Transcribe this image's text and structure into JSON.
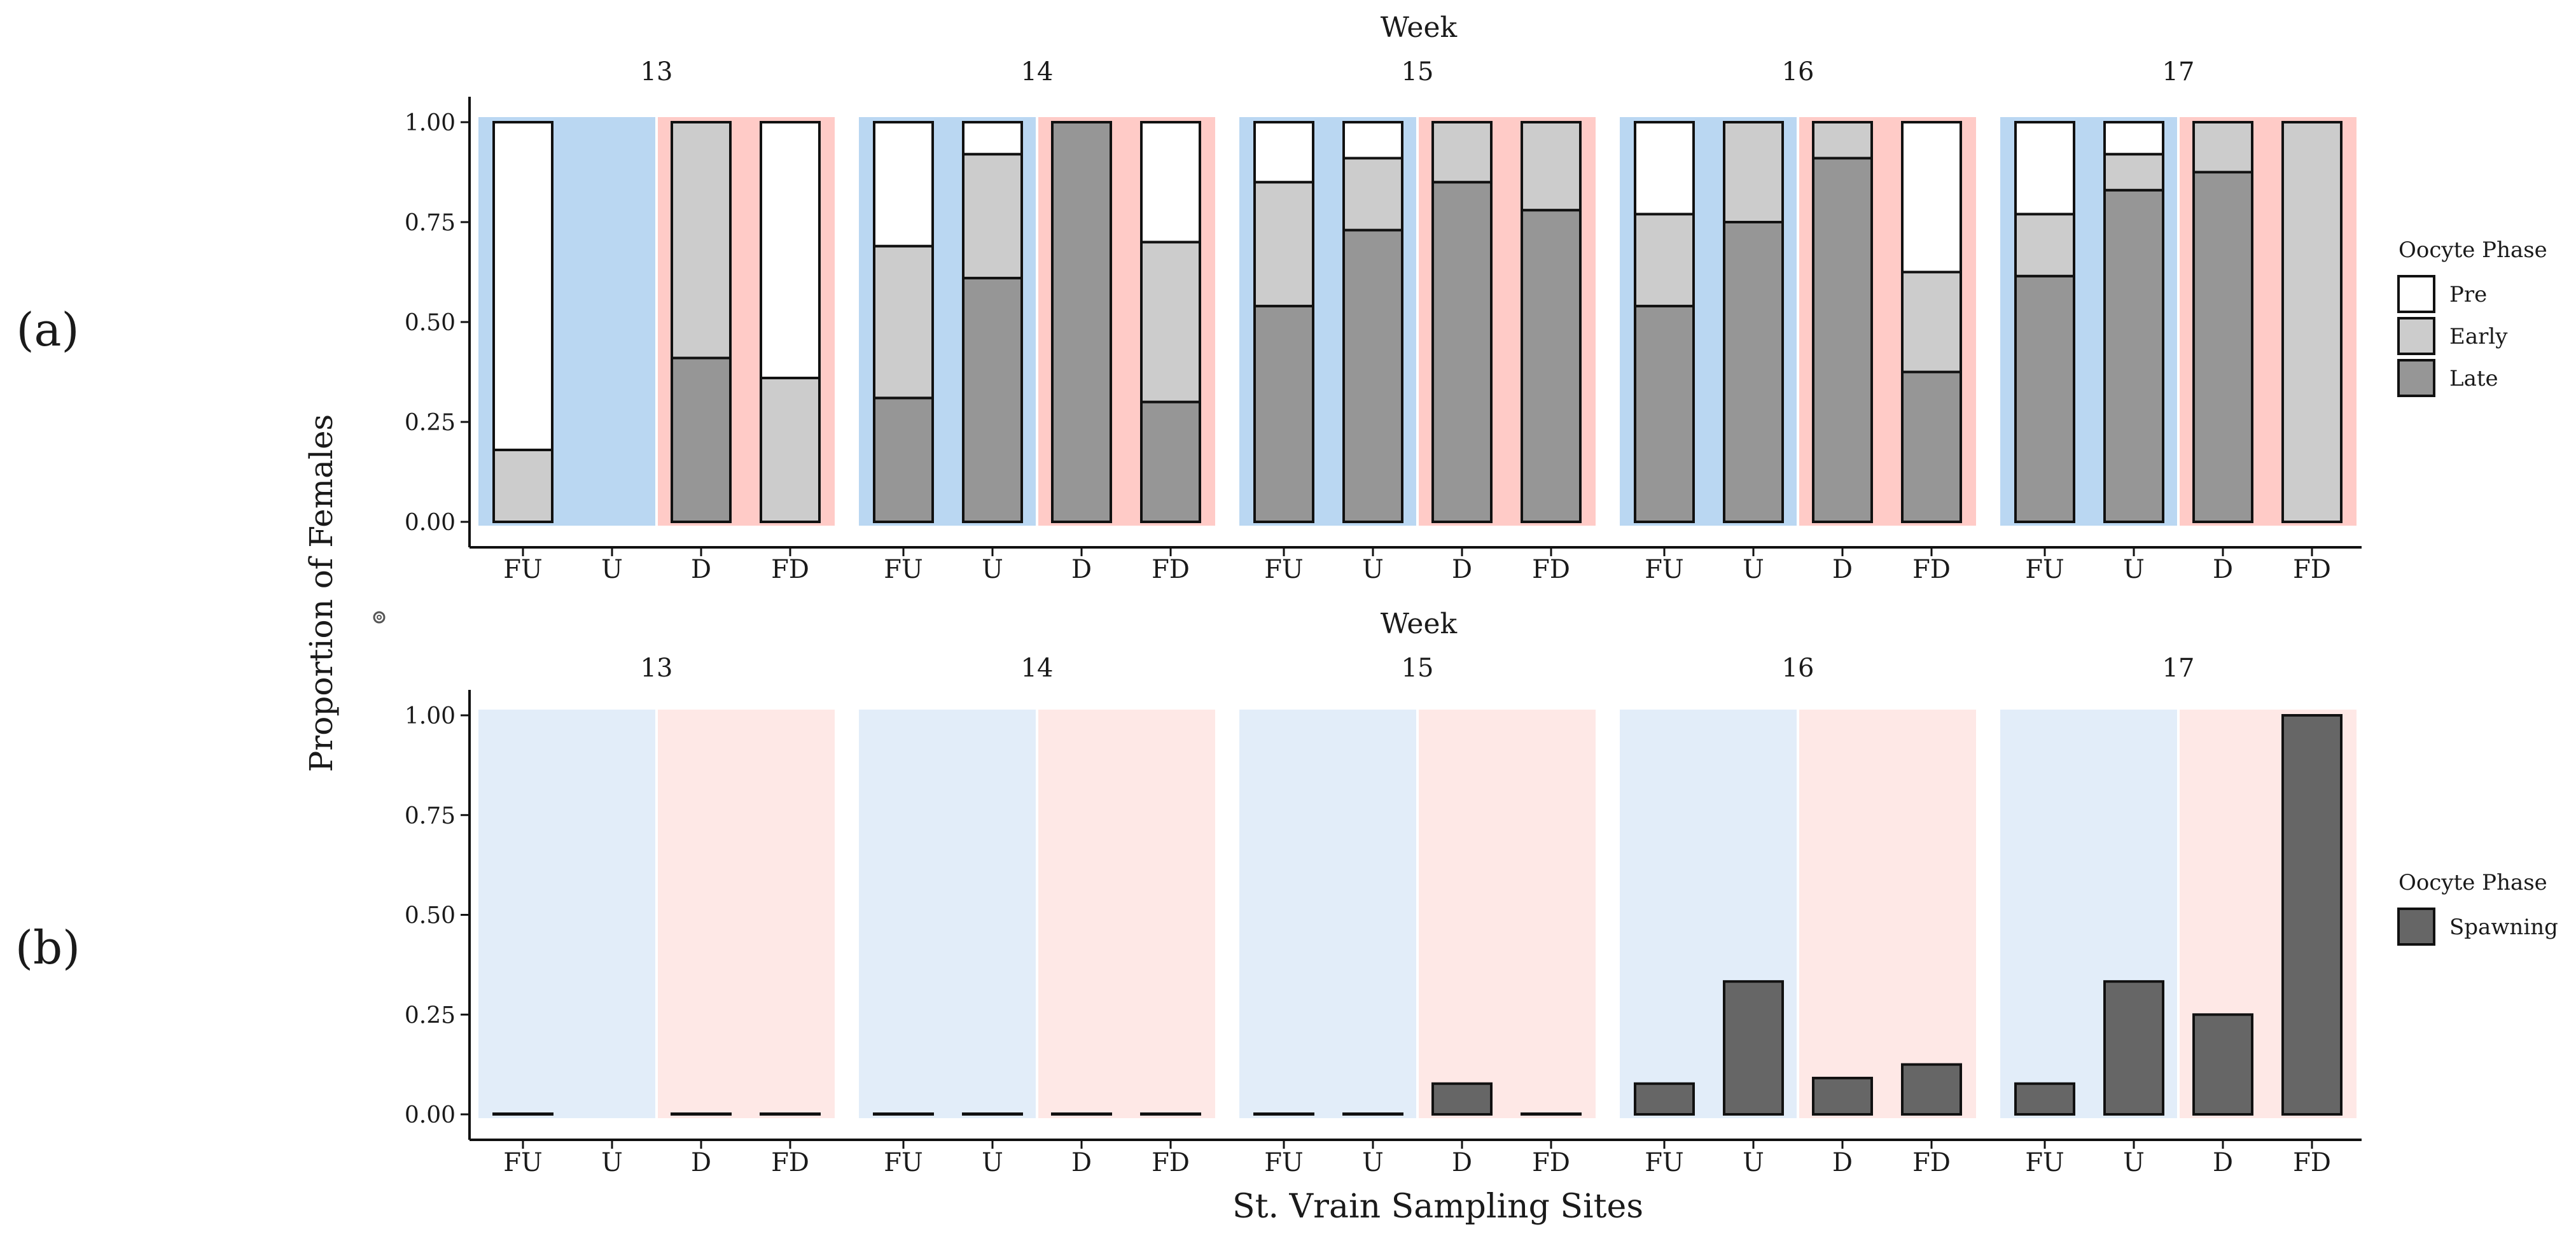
{
  "figure": {
    "panel_a_label": "(a)",
    "panel_b_label": "(b)",
    "y_axis_label": "Proportion of Females",
    "x_axis_label": "St. Vrain Sampling Sites",
    "facet_title": "Week"
  },
  "colors": {
    "upstream_bg": "#bad7f2",
    "downstream_bg": "#ffcbc7",
    "upstream_bg_light": "#e2edf9",
    "downstream_bg_light": "#fee8e6",
    "pre": "#ffffff",
    "early": "#cccccc",
    "late": "#969696",
    "spawning": "#666666",
    "outline": "#111111"
  },
  "chart_data": [
    {
      "type": "bar",
      "stacked": true,
      "panel": "a",
      "facet_title": "Week",
      "weeks": [
        "13",
        "14",
        "15",
        "16",
        "17"
      ],
      "categories": [
        "FU",
        "U",
        "D",
        "FD"
      ],
      "ylim": [
        0,
        1
      ],
      "yticks": [
        "0.00",
        "0.25",
        "0.50",
        "0.75",
        "1.00"
      ],
      "ylabel": "Proportion of Females",
      "legend": {
        "title": "Oocyte Phase",
        "position": "right",
        "entries": [
          "Pre",
          "Early",
          "Late"
        ]
      },
      "series": [
        {
          "name": "Late",
          "values": [
            [
              0,
              null,
              0.41,
              0
            ],
            [
              0.31,
              0.61,
              1.0,
              0.3
            ],
            [
              0.54,
              0.73,
              0.85,
              0.78
            ],
            [
              0.54,
              0.75,
              0.91,
              0.375
            ],
            [
              0.615,
              0.83,
              0.875,
              0
            ]
          ]
        },
        {
          "name": "Early",
          "values": [
            [
              0.18,
              null,
              0.59,
              0.36
            ],
            [
              0.38,
              0.31,
              0,
              0.4
            ],
            [
              0.31,
              0.18,
              0.15,
              0.22
            ],
            [
              0.23,
              0.25,
              0.09,
              0.25
            ],
            [
              0.155,
              0.09,
              0.125,
              1.0
            ]
          ]
        },
        {
          "name": "Pre",
          "values": [
            [
              0.82,
              null,
              0,
              0.64
            ],
            [
              0.31,
              0.08,
              0,
              0.3
            ],
            [
              0.15,
              0.09,
              0,
              0
            ],
            [
              0.23,
              0,
              0,
              0.375
            ],
            [
              0.23,
              0.08,
              0,
              0
            ]
          ]
        }
      ]
    },
    {
      "type": "bar",
      "stacked": false,
      "panel": "b",
      "facet_title": "Week",
      "weeks": [
        "13",
        "14",
        "15",
        "16",
        "17"
      ],
      "categories": [
        "FU",
        "U",
        "D",
        "FD"
      ],
      "ylim": [
        0,
        1
      ],
      "yticks": [
        "0.00",
        "0.25",
        "0.50",
        "0.75",
        "1.00"
      ],
      "xlabel": "St. Vrain Sampling Sites",
      "legend": {
        "title": "Oocyte Phase",
        "position": "right",
        "entries": [
          "Spawning"
        ]
      },
      "series": [
        {
          "name": "Spawning",
          "values": [
            [
              0,
              null,
              0,
              0
            ],
            [
              0,
              0,
              0,
              0
            ],
            [
              0,
              0,
              0.077,
              0
            ],
            [
              0.077,
              0.333,
              0.091,
              0.125
            ],
            [
              0.077,
              0.333,
              0.25,
              1.0
            ]
          ]
        }
      ]
    }
  ]
}
